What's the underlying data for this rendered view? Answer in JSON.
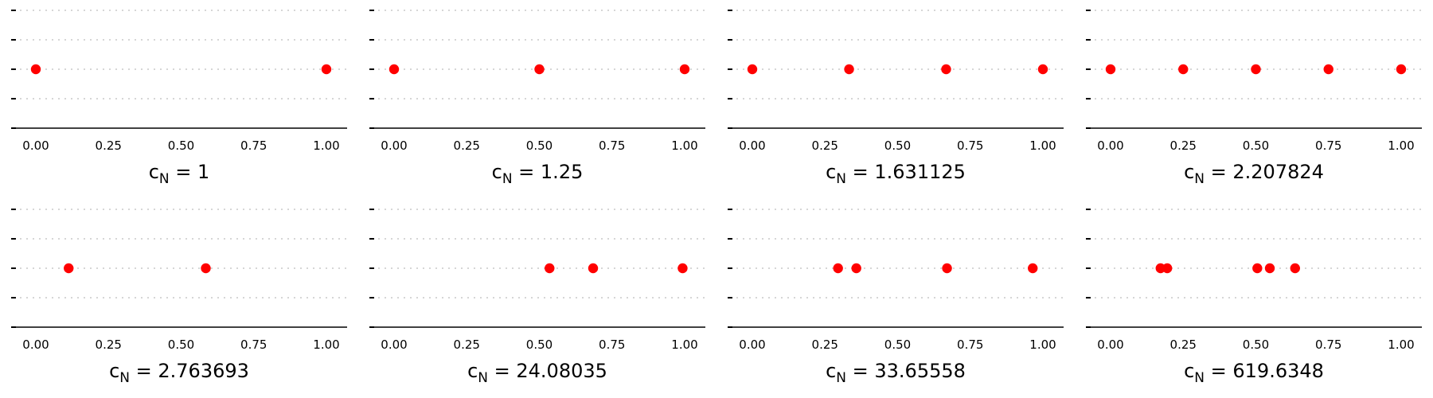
{
  "chart_data": [
    {
      "type": "scatter",
      "label_prefix": "c",
      "label_sub": "N",
      "label_rest": " = 1",
      "x": [
        0.0,
        1.0
      ],
      "y_level": 0,
      "xlim": [
        -0.08,
        1.07
      ],
      "xticks": [
        "0.00",
        "0.25",
        "0.50",
        "0.75",
        "1.00"
      ],
      "grid": "dotted horizontal"
    },
    {
      "type": "scatter",
      "label_prefix": "c",
      "label_sub": "N",
      "label_rest": " = 1.25",
      "x": [
        0.0,
        0.5,
        1.0
      ],
      "y_level": 0,
      "xlim": [
        -0.08,
        1.07
      ],
      "xticks": [
        "0.00",
        "0.25",
        "0.50",
        "0.75",
        "1.00"
      ],
      "grid": "dotted horizontal"
    },
    {
      "type": "scatter",
      "label_prefix": "c",
      "label_sub": "N",
      "label_rest": " = 1.631125",
      "x": [
        0.0,
        0.333,
        0.667,
        1.0
      ],
      "y_level": 0,
      "xlim": [
        -0.08,
        1.07
      ],
      "xticks": [
        "0.00",
        "0.25",
        "0.50",
        "0.75",
        "1.00"
      ],
      "grid": "dotted horizontal"
    },
    {
      "type": "scatter",
      "label_prefix": "c",
      "label_sub": "N",
      "label_rest": " = 2.207824",
      "x": [
        0.0,
        0.25,
        0.5,
        0.75,
        1.0
      ],
      "y_level": 0,
      "xlim": [
        -0.08,
        1.07
      ],
      "xticks": [
        "0.00",
        "0.25",
        "0.50",
        "0.75",
        "1.00"
      ],
      "grid": "dotted horizontal"
    },
    {
      "type": "scatter",
      "label_prefix": "c",
      "label_sub": "N",
      "label_rest": " = 2.763693",
      "x": [
        0.113,
        0.585
      ],
      "y_level": 0,
      "xlim": [
        -0.08,
        1.07
      ],
      "xticks": [
        "0.00",
        "0.25",
        "0.50",
        "0.75",
        "1.00"
      ],
      "grid": "dotted horizontal"
    },
    {
      "type": "scatter",
      "label_prefix": "c",
      "label_sub": "N",
      "label_rest": " = 24.08035",
      "x": [
        0.535,
        0.685,
        0.993
      ],
      "y_level": 0,
      "xlim": [
        -0.08,
        1.07
      ],
      "xticks": [
        "0.00",
        "0.25",
        "0.50",
        "0.75",
        "1.00"
      ],
      "grid": "dotted horizontal"
    },
    {
      "type": "scatter",
      "label_prefix": "c",
      "label_sub": "N",
      "label_rest": " = 33.65558",
      "x": [
        0.295,
        0.358,
        0.67,
        0.965
      ],
      "y_level": 0,
      "xlim": [
        -0.08,
        1.07
      ],
      "xticks": [
        "0.00",
        "0.25",
        "0.50",
        "0.75",
        "1.00"
      ],
      "grid": "dotted horizontal"
    },
    {
      "type": "scatter",
      "label_prefix": "c",
      "label_sub": "N",
      "label_rest": " = 619.6348",
      "x": [
        0.172,
        0.195,
        0.505,
        0.548,
        0.635
      ],
      "y_level": 0,
      "xlim": [
        -0.08,
        1.07
      ],
      "xticks": [
        "0.00",
        "0.25",
        "0.50",
        "0.75",
        "1.00"
      ],
      "grid": "dotted horizontal"
    }
  ],
  "colors": {
    "marker": "#ff0000",
    "grid": "#c8c8c8",
    "axis": "#000000"
  }
}
